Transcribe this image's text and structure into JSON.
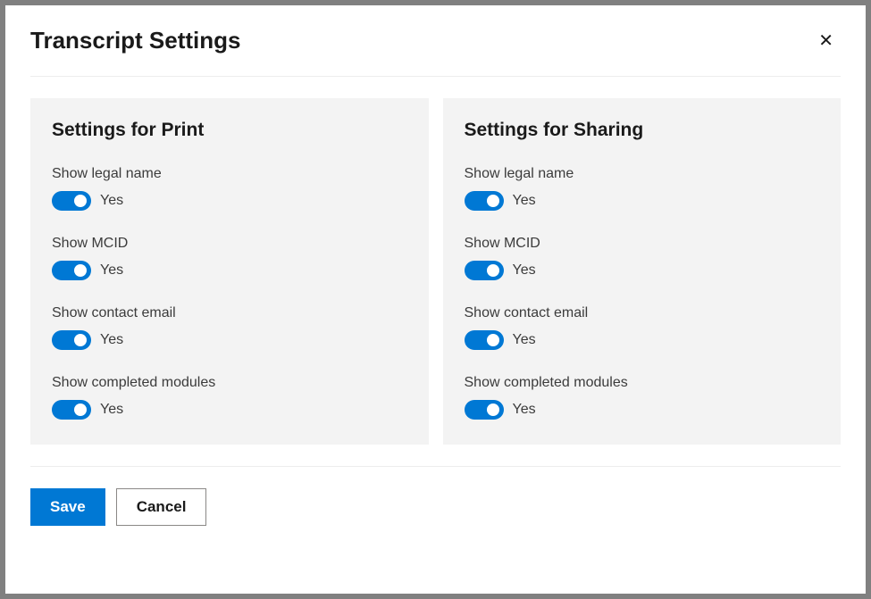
{
  "dialog": {
    "title": "Transcript Settings"
  },
  "colors": {
    "toggle_on": "#0078d4",
    "primary_button_bg": "#0078d4",
    "primary_button_text": "#ffffff",
    "panel_bg": "#f3f3f3",
    "border": "#ededed",
    "text_primary": "#1a1a1a",
    "text_secondary": "#3b3b3b"
  },
  "panels": {
    "print": {
      "title": "Settings for Print",
      "settings": [
        {
          "label": "Show legal name",
          "value": true,
          "state": "Yes"
        },
        {
          "label": "Show MCID",
          "value": true,
          "state": "Yes"
        },
        {
          "label": "Show contact email",
          "value": true,
          "state": "Yes"
        },
        {
          "label": "Show completed modules",
          "value": true,
          "state": "Yes"
        }
      ]
    },
    "sharing": {
      "title": "Settings for Sharing",
      "settings": [
        {
          "label": "Show legal name",
          "value": true,
          "state": "Yes"
        },
        {
          "label": "Show MCID",
          "value": true,
          "state": "Yes"
        },
        {
          "label": "Show contact email",
          "value": true,
          "state": "Yes"
        },
        {
          "label": "Show completed modules",
          "value": true,
          "state": "Yes"
        }
      ]
    }
  },
  "buttons": {
    "save": "Save",
    "cancel": "Cancel"
  }
}
